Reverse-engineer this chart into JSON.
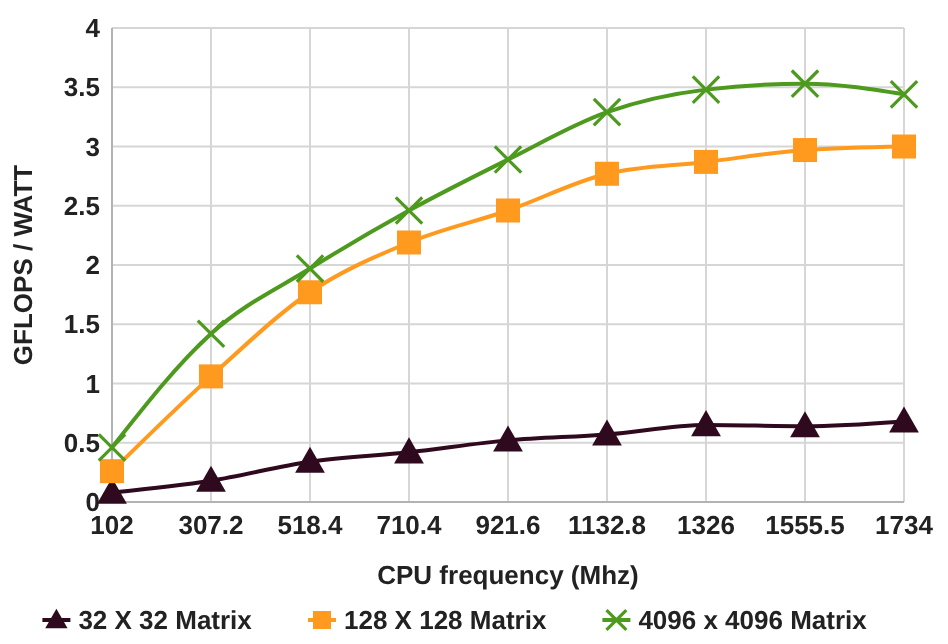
{
  "chart_data": {
    "type": "line",
    "xlabel": "CPU frequency (Mhz)",
    "ylabel": "GFLOPS / WATT",
    "categories": [
      "102",
      "307.2",
      "518.4",
      "710.4",
      "921.6",
      "1132.8",
      "1326",
      "1555.5",
      "1734"
    ],
    "ylim": [
      0,
      4
    ],
    "yticks": [
      0,
      0.5,
      1,
      1.5,
      2,
      2.5,
      3,
      3.5,
      4
    ],
    "grid": true,
    "legend": "bottom",
    "series": [
      {
        "name": "32 X 32 Matrix",
        "color": "#2f0a1e",
        "marker": "triangle",
        "values": [
          0.08,
          0.18,
          0.34,
          0.42,
          0.52,
          0.57,
          0.65,
          0.64,
          0.68
        ]
      },
      {
        "name": "128 X 128 Matrix",
        "color": "#ff9a1f",
        "marker": "square",
        "values": [
          0.26,
          1.06,
          1.77,
          2.19,
          2.46,
          2.77,
          2.87,
          2.97,
          3.0
        ]
      },
      {
        "name": "4096 x 4096 Matrix",
        "color": "#4d9a1e",
        "marker": "cross",
        "values": [
          0.46,
          1.42,
          1.97,
          2.46,
          2.89,
          3.29,
          3.48,
          3.53,
          3.44
        ]
      }
    ]
  }
}
